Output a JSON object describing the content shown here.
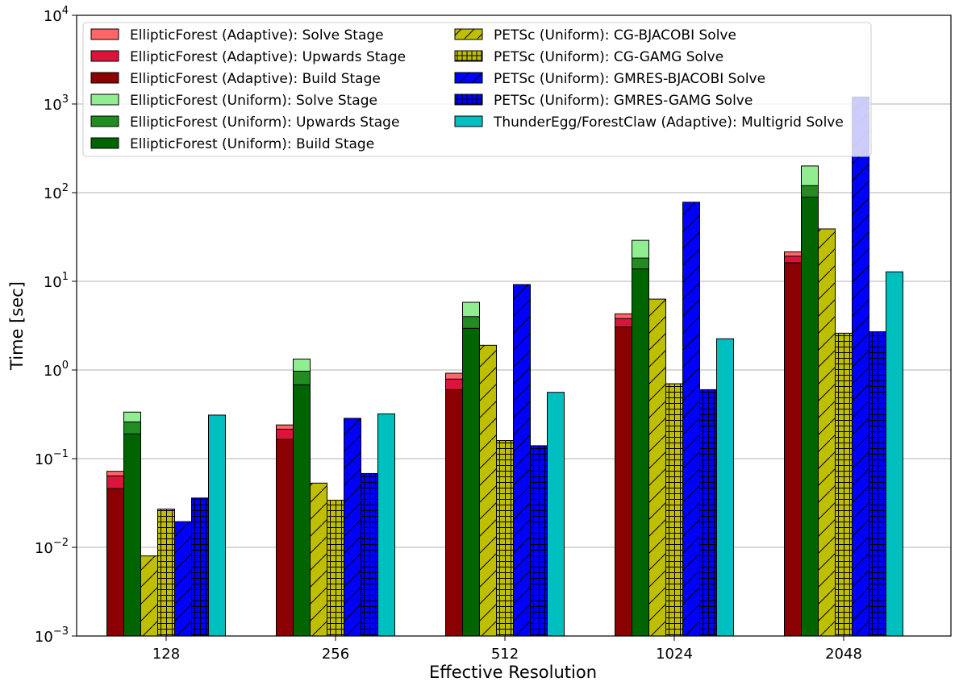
{
  "chart_data": {
    "type": "bar",
    "xlabel": "Effective Resolution",
    "ylabel": "Time [sec]",
    "yscale": "log",
    "ylim": [
      0.001,
      10000
    ],
    "grid": "y-major",
    "legend_position": "top",
    "categories": [
      "128",
      "256",
      "512",
      "1024",
      "2048"
    ],
    "y_ticks": [
      {
        "base": "10",
        "exp": "−3",
        "value": 0.001
      },
      {
        "base": "10",
        "exp": "−2",
        "value": 0.01
      },
      {
        "base": "10",
        "exp": "−1",
        "value": 0.1
      },
      {
        "base": "10",
        "exp": "0",
        "value": 1
      },
      {
        "base": "10",
        "exp": "1",
        "value": 10
      },
      {
        "base": "10",
        "exp": "2",
        "value": 100
      },
      {
        "base": "10",
        "exp": "3",
        "value": 1000
      },
      {
        "base": "10",
        "exp": "4",
        "value": 10000
      }
    ],
    "series": [
      {
        "name": "EllipticForest (Adaptive): Solve Stage",
        "color": "#ff6666",
        "hatch": "none",
        "group": "EllipticForest (Adaptive)",
        "values": [
          0.072,
          0.24,
          0.92,
          4.3,
          21.5
        ]
      },
      {
        "name": "EllipticForest (Adaptive): Upwards Stage",
        "color": "#dc143c",
        "hatch": "none",
        "group": "EllipticForest (Adaptive)",
        "values": [
          0.064,
          0.215,
          0.79,
          3.8,
          19.2
        ]
      },
      {
        "name": "EllipticForest (Adaptive): Build Stage",
        "color": "#8b0000",
        "hatch": "none",
        "group": "EllipticForest (Adaptive)",
        "values": [
          0.046,
          0.165,
          0.6,
          3.05,
          16.2
        ]
      },
      {
        "name": "EllipticForest (Uniform): Solve Stage",
        "color": "#90ee90",
        "hatch": "none",
        "group": "EllipticForest (Uniform)",
        "values": [
          0.335,
          1.33,
          5.8,
          29.0,
          200.0
        ]
      },
      {
        "name": "EllipticForest (Uniform): Upwards Stage",
        "color": "#228b22",
        "hatch": "none",
        "group": "EllipticForest (Uniform)",
        "values": [
          0.26,
          0.97,
          4.0,
          18.3,
          120.0
        ]
      },
      {
        "name": "EllipticForest (Uniform): Build Stage",
        "color": "#006400",
        "hatch": "none",
        "group": "EllipticForest (Uniform)",
        "values": [
          0.19,
          0.68,
          2.95,
          13.8,
          89.0
        ]
      },
      {
        "name": "PETSc (Uniform): CG-BJACOBI Solve",
        "color": "#bfbf00",
        "hatch": "diag",
        "group": "PETSc CG-BJACOBI",
        "values": [
          0.008,
          0.053,
          1.9,
          6.3,
          39.0
        ]
      },
      {
        "name": "PETSc (Uniform): CG-GAMG Solve",
        "color": "#bfbf00",
        "hatch": "grid",
        "group": "PETSc CG-GAMG",
        "values": [
          0.027,
          0.034,
          0.16,
          0.7,
          2.6
        ]
      },
      {
        "name": "PETSc (Uniform): GMRES-BJACOBI Solve",
        "color": "#0000ff",
        "hatch": "diag",
        "group": "PETSc GMRES-BJACOBI",
        "values": [
          0.0195,
          0.285,
          9.2,
          78.0,
          1200.0
        ]
      },
      {
        "name": "PETSc (Uniform): GMRES-GAMG Solve",
        "color": "#0000ff",
        "hatch": "grid",
        "group": "PETSc GMRES-GAMG",
        "values": [
          0.036,
          0.068,
          0.14,
          0.6,
          2.7
        ]
      },
      {
        "name": "ThunderEgg/ForestClaw (Adaptive): Multigrid Solve",
        "color": "#00bfbf",
        "hatch": "none",
        "group": "ThunderEgg/ForestClaw",
        "values": [
          0.31,
          0.32,
          0.56,
          2.25,
          12.8
        ]
      }
    ]
  }
}
